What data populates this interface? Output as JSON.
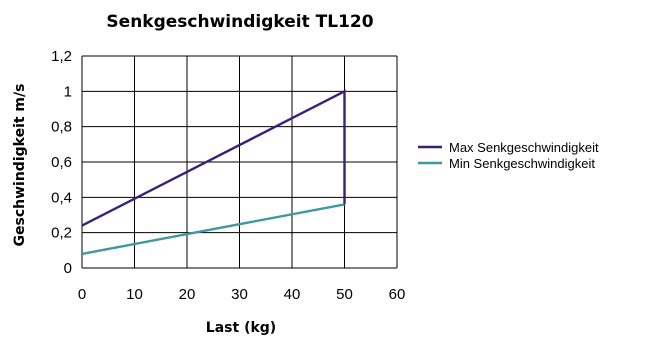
{
  "chart_data": {
    "type": "line",
    "title": "Senkgeschwindigkeit TL120",
    "xlabel": "Last (kg)",
    "ylabel": "Geschwindigkeit m/s",
    "xlim": [
      0,
      60
    ],
    "ylim": [
      0,
      1.2
    ],
    "x_ticks": [
      "0",
      "10",
      "20",
      "30",
      "40",
      "50",
      "60"
    ],
    "y_ticks": [
      "0",
      "0,2",
      "0,4",
      "0,6",
      "0,8",
      "1",
      "1,2"
    ],
    "grid": true,
    "legend_position": "right",
    "series": [
      {
        "name": "Max Senkgeschwindigkeit",
        "color": "#3b1f7a",
        "points": [
          [
            0,
            0.24
          ],
          [
            50,
            1.0
          ],
          [
            50,
            0.36
          ]
        ]
      },
      {
        "name": "Min Senkgeschwindigkeit",
        "color": "#3f9aa0",
        "points": [
          [
            0,
            0.08
          ],
          [
            50,
            0.36
          ]
        ]
      }
    ]
  }
}
